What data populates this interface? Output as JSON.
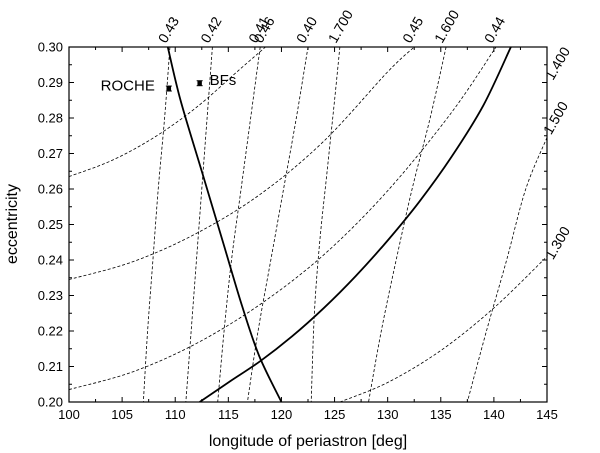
{
  "chart_data": {
    "type": "line",
    "xlabel": "longitude of periastron [deg]",
    "ylabel": "eccentricity",
    "xlim": [
      100,
      145
    ],
    "ylim": [
      0.2,
      0.3
    ],
    "x_ticks": [
      100,
      105,
      110,
      115,
      120,
      125,
      130,
      135,
      140,
      145
    ],
    "y_ticks": [
      "0.20",
      "0.21",
      "0.22",
      "0.23",
      "0.24",
      "0.25",
      "0.26",
      "0.27",
      "0.28",
      "0.29",
      "0.30"
    ],
    "grid": false,
    "contours_family_a": [
      {
        "label": "0.46",
        "points": [
          [
            100,
            0.2635
          ],
          [
            104,
            0.268
          ],
          [
            108,
            0.2745
          ],
          [
            112,
            0.283
          ],
          [
            116,
            0.2935
          ],
          [
            118.5,
            0.3
          ]
        ]
      },
      {
        "label": "0.45",
        "points": [
          [
            100,
            0.2345
          ],
          [
            106,
            0.2395
          ],
          [
            112,
            0.2475
          ],
          [
            118,
            0.2585
          ],
          [
            124,
            0.2735
          ],
          [
            130,
            0.293
          ],
          [
            132.5,
            0.3
          ]
        ]
      },
      {
        "label": "0.44",
        "points": [
          [
            100,
            0.2035
          ],
          [
            106,
            0.2085
          ],
          [
            112,
            0.2165
          ],
          [
            118,
            0.2275
          ],
          [
            124,
            0.2415
          ],
          [
            130,
            0.2595
          ],
          [
            136,
            0.2815
          ],
          [
            140.2,
            0.3
          ]
        ]
      },
      {
        "label": "1.300",
        "points": [
          [
            125.5,
            0.2
          ],
          [
            130,
            0.2055
          ],
          [
            135,
            0.2145
          ],
          [
            140,
            0.2265
          ],
          [
            145,
            0.241
          ]
        ]
      },
      {
        "label": "1.400",
        "points": [
          [
            143,
            0.3
          ],
          [
            145,
            0.305
          ]
        ]
      }
    ],
    "contours_family_b": [
      {
        "label": "0.43",
        "points": [
          [
            109.5,
            0.3
          ],
          [
            109.0,
            0.28
          ],
          [
            108.4,
            0.26
          ],
          [
            107.9,
            0.24
          ],
          [
            107.4,
            0.22
          ],
          [
            107.0,
            0.2
          ]
        ]
      },
      {
        "label": "0.42",
        "points": [
          [
            113.5,
            0.3
          ],
          [
            113.0,
            0.28
          ],
          [
            112.5,
            0.26
          ],
          [
            112.0,
            0.24
          ],
          [
            111.5,
            0.22
          ],
          [
            111.0,
            0.2
          ]
        ]
      },
      {
        "label": "0.41",
        "points": [
          [
            118.0,
            0.3
          ],
          [
            117.1,
            0.28
          ],
          [
            116.2,
            0.26
          ],
          [
            115.3,
            0.24
          ],
          [
            114.6,
            0.22
          ],
          [
            114.0,
            0.2
          ]
        ]
      },
      {
        "label": "0.40",
        "points": [
          [
            122.5,
            0.3
          ],
          [
            121.4,
            0.28
          ],
          [
            120.2,
            0.26
          ],
          [
            119.0,
            0.24
          ],
          [
            117.8,
            0.22
          ],
          [
            116.8,
            0.2
          ]
        ]
      },
      {
        "label": "1.700",
        "points": [
          [
            125.5,
            0.3
          ],
          [
            125.0,
            0.285
          ],
          [
            124.3,
            0.265
          ],
          [
            123.6,
            0.245
          ],
          [
            123.1,
            0.225
          ],
          [
            122.8,
            0.2
          ]
        ]
      },
      {
        "label": "1.600",
        "points": [
          [
            135.5,
            0.3
          ],
          [
            134.0,
            0.28
          ],
          [
            132.3,
            0.26
          ],
          [
            130.8,
            0.24
          ],
          [
            129.4,
            0.22
          ],
          [
            128.2,
            0.2
          ]
        ]
      },
      {
        "label": "1.500",
        "points": [
          [
            145,
            0.2745
          ],
          [
            143.0,
            0.26
          ],
          [
            141.2,
            0.24
          ],
          [
            139.3,
            0.22
          ],
          [
            137.5,
            0.2
          ]
        ]
      }
    ],
    "solid_curves": [
      {
        "points": [
          [
            109.3,
            0.3
          ],
          [
            110.5,
            0.285
          ],
          [
            112.5,
            0.265
          ],
          [
            114.5,
            0.245
          ],
          [
            116.3,
            0.227
          ],
          [
            117.9,
            0.213
          ],
          [
            120.0,
            0.2
          ]
        ]
      },
      {
        "points": [
          [
            112.3,
            0.2
          ],
          [
            115,
            0.2055
          ],
          [
            118,
            0.2115
          ],
          [
            121,
            0.2185
          ],
          [
            124,
            0.2265
          ],
          [
            127,
            0.2355
          ],
          [
            130,
            0.2455
          ],
          [
            133,
            0.2565
          ],
          [
            136,
            0.269
          ],
          [
            139,
            0.2835
          ],
          [
            141.6,
            0.3
          ]
        ]
      }
    ],
    "annotations": [
      {
        "label": "ROCHE",
        "x": 109.4,
        "y": 0.2883,
        "yerr": 0.0007
      },
      {
        "label": "BFs",
        "x": 112.3,
        "y": 0.2898,
        "yerr": 0.0007
      }
    ]
  }
}
